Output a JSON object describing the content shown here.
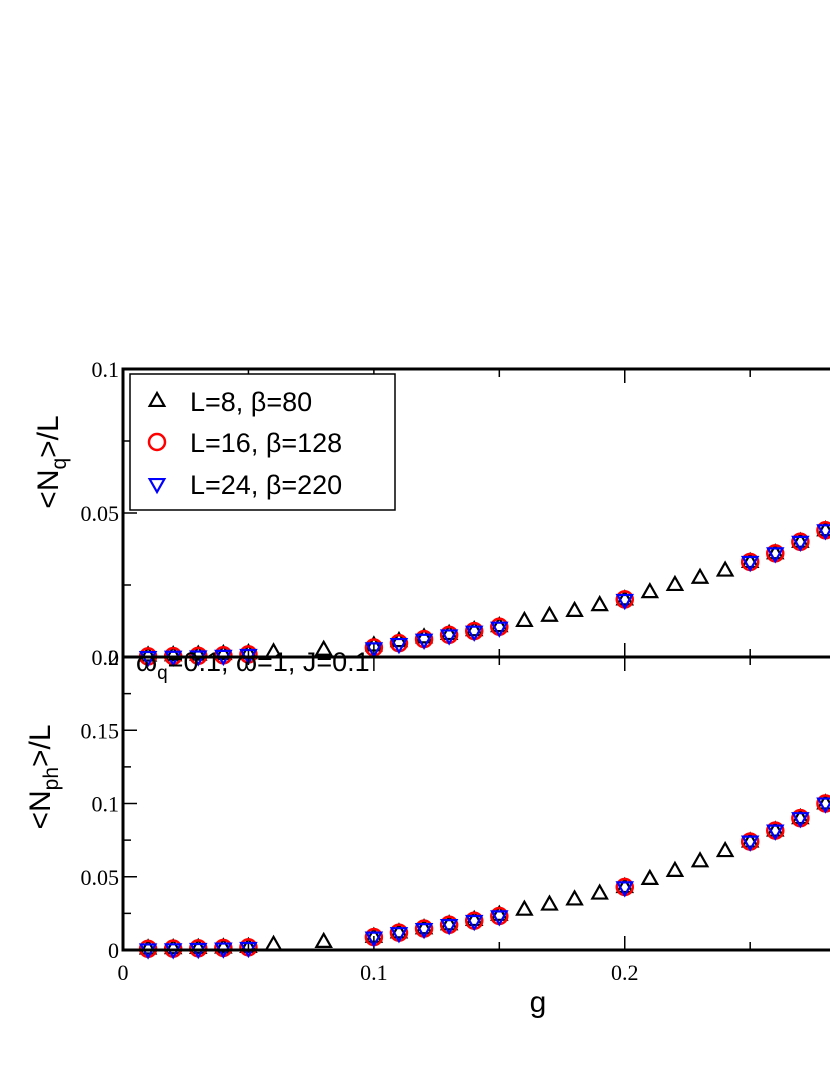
{
  "chart_data": [
    {
      "type": "scatter",
      "panel": "top",
      "ylabel": "<N_q>/L",
      "ylabel_main": "<N",
      "ylabel_sub": "q",
      "ylabel_end": ">/L",
      "xlim": [
        0,
        0.285
      ],
      "ylim": [
        0,
        0.1
      ],
      "yticks": [
        0,
        0.05,
        0.1
      ],
      "ytick_labels": [
        "0",
        "0.05",
        "0.1"
      ],
      "legend": {
        "position": "top-left",
        "entries": [
          {
            "marker": "triangle-up",
            "color": "#000000",
            "label": "L=8, β=80"
          },
          {
            "marker": "circle",
            "color": "#ff0000",
            "label": "L=16, β=128"
          },
          {
            "marker": "triangle-down",
            "color": "#0000ff",
            "label": "L=24, β=220"
          }
        ]
      },
      "series": [
        {
          "name": "L=8, β=80",
          "marker": "triangle-up",
          "color": "#000000",
          "x": [
            0.01,
            0.02,
            0.03,
            0.04,
            0.05,
            0.06,
            0.08,
            0.1,
            0.11,
            0.12,
            0.13,
            0.14,
            0.15,
            0.16,
            0.17,
            0.18,
            0.19,
            0.2,
            0.21,
            0.22,
            0.23,
            0.24,
            0.25,
            0.26,
            0.27,
            0.28
          ],
          "y": [
            0.0005,
            0.0006,
            0.0008,
            0.001,
            0.0013,
            0.0016,
            0.0025,
            0.004,
            0.0055,
            0.0068,
            0.008,
            0.0093,
            0.0107,
            0.0125,
            0.0143,
            0.016,
            0.018,
            0.02,
            0.0225,
            0.025,
            0.0275,
            0.03,
            0.033,
            0.036,
            0.04,
            0.044
          ]
        },
        {
          "name": "L=16, β=128",
          "marker": "circle",
          "color": "#ff0000",
          "x": [
            0.01,
            0.02,
            0.03,
            0.04,
            0.05,
            0.1,
            0.11,
            0.12,
            0.13,
            0.14,
            0.15,
            0.2,
            0.25,
            0.26,
            0.27,
            0.28
          ],
          "y": [
            0.0002,
            0.0003,
            0.0004,
            0.0006,
            0.0009,
            0.0033,
            0.0048,
            0.0062,
            0.0077,
            0.009,
            0.0105,
            0.02,
            0.033,
            0.036,
            0.04,
            0.044
          ]
        },
        {
          "name": "L=24, β=220",
          "marker": "triangle-down",
          "color": "#0000ff",
          "x": [
            0.01,
            0.02,
            0.03,
            0.04,
            0.05,
            0.1,
            0.11,
            0.12,
            0.13,
            0.14,
            0.15,
            0.2,
            0.25,
            0.26,
            0.27,
            0.28
          ],
          "y": [
            0.0,
            0.0001,
            0.0002,
            0.0004,
            0.0007,
            0.003,
            0.0045,
            0.006,
            0.0075,
            0.0088,
            0.0102,
            0.0198,
            0.033,
            0.036,
            0.04,
            0.044
          ]
        }
      ]
    },
    {
      "type": "scatter",
      "panel": "bottom",
      "xlabel": "g",
      "ylabel": "<N_ph>/L",
      "ylabel_main": "<N",
      "ylabel_sub": "ph",
      "ylabel_end": ">/L",
      "annotation": {
        "main": "ω",
        "sub": "q",
        "rest": "=0.1, ω=1, J=0.1"
      },
      "xlim": [
        0,
        0.285
      ],
      "ylim": [
        0,
        0.2
      ],
      "xticks": [
        0,
        0.1,
        0.2
      ],
      "xtick_labels": [
        "0",
        "0.1",
        "0.2"
      ],
      "yticks": [
        0,
        0.05,
        0.1,
        0.15,
        0.2
      ],
      "ytick_labels": [
        "0",
        "0.05",
        "0.1",
        "0.15",
        "0.2"
      ],
      "series": [
        {
          "name": "L=8, β=80",
          "marker": "triangle-up",
          "color": "#000000",
          "x": [
            0.01,
            0.02,
            0.03,
            0.04,
            0.05,
            0.06,
            0.08,
            0.1,
            0.11,
            0.12,
            0.13,
            0.14,
            0.15,
            0.16,
            0.17,
            0.18,
            0.19,
            0.2,
            0.21,
            0.22,
            0.23,
            0.24,
            0.25,
            0.26,
            0.27,
            0.28
          ],
          "y": [
            0.001,
            0.0012,
            0.0014,
            0.0017,
            0.0021,
            0.0035,
            0.0055,
            0.009,
            0.012,
            0.0148,
            0.0175,
            0.0205,
            0.024,
            0.0275,
            0.031,
            0.0345,
            0.0385,
            0.043,
            0.0485,
            0.054,
            0.0605,
            0.0675,
            0.074,
            0.0815,
            0.09,
            0.1
          ]
        },
        {
          "name": "L=16, β=128",
          "marker": "circle",
          "color": "#ff0000",
          "x": [
            0.01,
            0.02,
            0.03,
            0.04,
            0.05,
            0.1,
            0.11,
            0.12,
            0.13,
            0.14,
            0.15,
            0.2,
            0.25,
            0.26,
            0.27,
            0.28
          ],
          "y": [
            0.0008,
            0.0009,
            0.0011,
            0.0014,
            0.0018,
            0.0088,
            0.0118,
            0.0146,
            0.0172,
            0.02,
            0.0232,
            0.043,
            0.074,
            0.0815,
            0.09,
            0.1
          ]
        },
        {
          "name": "L=24, β=220",
          "marker": "triangle-down",
          "color": "#0000ff",
          "x": [
            0.01,
            0.02,
            0.03,
            0.04,
            0.05,
            0.1,
            0.11,
            0.12,
            0.13,
            0.14,
            0.15,
            0.2,
            0.25,
            0.26,
            0.27,
            0.28
          ],
          "y": [
            0.0004,
            0.0005,
            0.0007,
            0.001,
            0.0014,
            0.0085,
            0.0115,
            0.0143,
            0.017,
            0.0198,
            0.023,
            0.0428,
            0.074,
            0.0815,
            0.09,
            0.1
          ]
        }
      ]
    }
  ]
}
